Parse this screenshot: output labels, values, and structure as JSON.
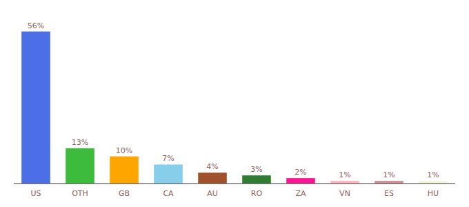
{
  "chart_data": {
    "type": "bar",
    "categories": [
      "US",
      "OTH",
      "GB",
      "CA",
      "AU",
      "RO",
      "ZA",
      "VN",
      "ES",
      "HU"
    ],
    "values": [
      56,
      13,
      10,
      7,
      4,
      3,
      2,
      1,
      1,
      1
    ],
    "value_labels": [
      "56%",
      "13%",
      "10%",
      "7%",
      "4%",
      "3%",
      "2%",
      "1%",
      "1%",
      "1%"
    ],
    "colors": [
      "#4C6EE6",
      "#3CBB3C",
      "#FFA500",
      "#87CEEB",
      "#A0522D",
      "#2E7D32",
      "#FF1493",
      "#FFB6C1",
      "#CD9090",
      "#F5F5DC"
    ],
    "ylim": [
      0,
      62
    ],
    "grid": false,
    "data_labels": true,
    "tick_labels": "x"
  }
}
